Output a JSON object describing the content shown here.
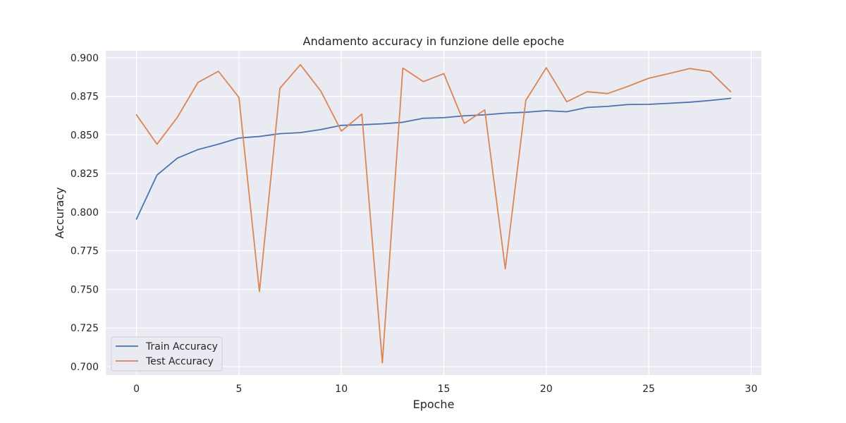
{
  "chart_data": {
    "type": "line",
    "title": "Andamento accuracy in funzione delle epoche",
    "xlabel": "Epoche",
    "ylabel": "Accuracy",
    "xlim": [
      -1.5,
      30.5
    ],
    "ylim": [
      0.6945,
      0.9045
    ],
    "xticks": [
      0,
      5,
      10,
      15,
      20,
      25,
      30
    ],
    "xtick_labels": [
      "0",
      "5",
      "10",
      "15",
      "20",
      "25",
      "30"
    ],
    "yticks": [
      0.7,
      0.725,
      0.75,
      0.775,
      0.8,
      0.825,
      0.85,
      0.875,
      0.9
    ],
    "ytick_labels": [
      "0.700",
      "0.725",
      "0.750",
      "0.775",
      "0.800",
      "0.825",
      "0.850",
      "0.875",
      "0.900"
    ],
    "grid": true,
    "legend_position": "bottom-left",
    "background_color": "#eaeaf2",
    "x": [
      0,
      1,
      2,
      3,
      4,
      5,
      6,
      7,
      8,
      9,
      10,
      11,
      12,
      13,
      14,
      15,
      16,
      17,
      18,
      19,
      20,
      21,
      22,
      23,
      24,
      25,
      26,
      27,
      28,
      29
    ],
    "series": [
      {
        "name": "Train Accuracy",
        "color": "#4c72b0",
        "values": [
          0.7955,
          0.824,
          0.835,
          0.8405,
          0.844,
          0.848,
          0.849,
          0.8508,
          0.8515,
          0.8535,
          0.8562,
          0.8566,
          0.8572,
          0.8582,
          0.8608,
          0.8612,
          0.8624,
          0.863,
          0.8641,
          0.8647,
          0.8657,
          0.865,
          0.8678,
          0.8685,
          0.8697,
          0.8698,
          0.8705,
          0.8712,
          0.8723,
          0.8737
        ]
      },
      {
        "name": "Test Accuracy",
        "color": "#dd8452",
        "values": [
          0.863,
          0.844,
          0.8615,
          0.884,
          0.8912,
          0.8743,
          0.7485,
          0.8802,
          0.8955,
          0.8783,
          0.8525,
          0.8635,
          0.7025,
          0.8933,
          0.8845,
          0.8897,
          0.8575,
          0.8662,
          0.7633,
          0.8723,
          0.8935,
          0.8715,
          0.878,
          0.8768,
          0.8815,
          0.8867,
          0.8898,
          0.893,
          0.891,
          0.878
        ]
      }
    ]
  }
}
